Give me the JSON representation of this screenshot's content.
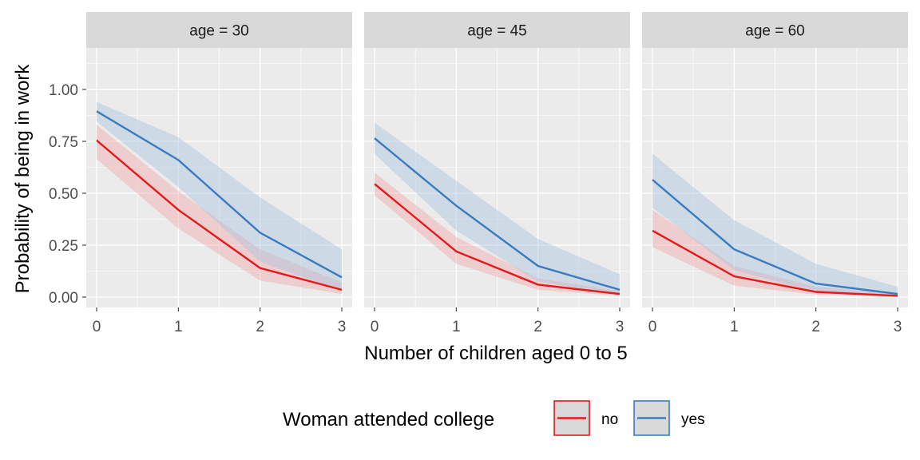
{
  "chart_data": {
    "type": "line",
    "facet_variable": "age",
    "x": [
      0,
      1,
      2,
      3
    ],
    "x_ticks": [
      "0",
      "1",
      "2",
      "3"
    ],
    "xlabel": "Number of children aged 0 to 5",
    "ylabel": "Probability of being in work",
    "ylim": [
      -0.05,
      1.2
    ],
    "y_ticks": [
      "0.00",
      "0.25",
      "0.50",
      "0.75",
      "1.00"
    ],
    "grid": true,
    "confidence_bands": true,
    "legend": {
      "title": "Woman attended college",
      "position": "bottom",
      "entries": [
        "no",
        "yes"
      ]
    },
    "colors": {
      "no": "#e31a1c",
      "yes": "#3a7bc0",
      "no_band": "#f2a8ab",
      "yes_band": "#a9c4de"
    },
    "panels": [
      {
        "strip": "age = 30",
        "series": [
          {
            "name": "no",
            "values": [
              0.755,
              0.42,
              0.14,
              0.035
            ],
            "lower": [
              0.665,
              0.33,
              0.08,
              0.015
            ],
            "upper": [
              0.83,
              0.51,
              0.23,
              0.07
            ]
          },
          {
            "name": "yes",
            "values": [
              0.895,
              0.66,
              0.31,
              0.095
            ],
            "lower": [
              0.845,
              0.53,
              0.17,
              0.03
            ],
            "upper": [
              0.94,
              0.77,
              0.48,
              0.23
            ]
          }
        ]
      },
      {
        "strip": "age = 45",
        "series": [
          {
            "name": "no",
            "values": [
              0.545,
              0.22,
              0.06,
              0.015
            ],
            "lower": [
              0.49,
              0.16,
              0.035,
              0.006
            ],
            "upper": [
              0.6,
              0.29,
              0.09,
              0.03
            ]
          },
          {
            "name": "yes",
            "values": [
              0.765,
              0.44,
              0.15,
              0.035
            ],
            "lower": [
              0.69,
              0.32,
              0.075,
              0.01
            ],
            "upper": [
              0.84,
              0.56,
              0.28,
              0.11
            ]
          }
        ]
      },
      {
        "strip": "age = 60",
        "series": [
          {
            "name": "no",
            "values": [
              0.32,
              0.1,
              0.025,
              0.006
            ],
            "lower": [
              0.24,
              0.055,
              0.012,
              0.002
            ],
            "upper": [
              0.42,
              0.15,
              0.05,
              0.015
            ]
          },
          {
            "name": "yes",
            "values": [
              0.565,
              0.23,
              0.065,
              0.015
            ],
            "lower": [
              0.43,
              0.13,
              0.025,
              0.004
            ],
            "upper": [
              0.69,
              0.37,
              0.16,
              0.05
            ]
          }
        ]
      }
    ]
  }
}
